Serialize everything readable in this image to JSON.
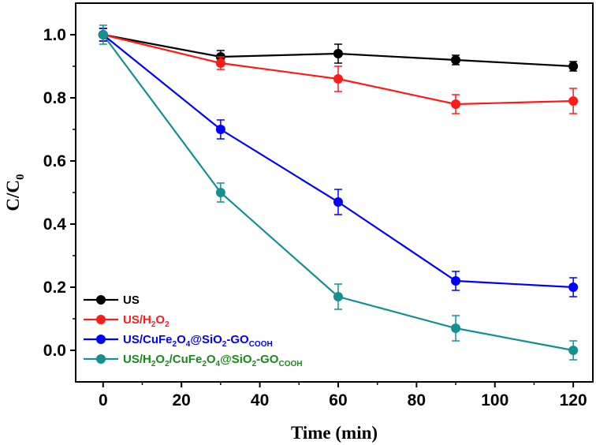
{
  "chart_data": {
    "type": "line",
    "title": "",
    "xlabel": "Time (min)",
    "ylabel_main": "C/C",
    "ylabel_sub": "0",
    "xlim": [
      -7,
      125
    ],
    "ylim": [
      -0.1,
      1.1
    ],
    "x_ticks": [
      "0",
      "20",
      "40",
      "60",
      "80",
      "100",
      "120"
    ],
    "y_ticks": [
      "0.0",
      "0.2",
      "0.4",
      "0.6",
      "0.8",
      "1.0"
    ],
    "x": [
      0,
      30,
      60,
      90,
      120
    ],
    "legend_position": "bottom-left",
    "series": [
      {
        "name": "US",
        "label_parts": [
          [
            "US",
            ""
          ]
        ],
        "color": "#000000",
        "legend_color": "#000000",
        "values": [
          1.0,
          0.93,
          0.94,
          0.92,
          0.9
        ],
        "errors": [
          0.02,
          0.02,
          0.03,
          0.015,
          0.015
        ]
      },
      {
        "name": "US/H2O2",
        "label_parts": [
          [
            "US/H",
            ""
          ],
          [
            "2",
            "sub"
          ],
          [
            "O",
            ""
          ],
          [
            "2",
            "sub"
          ]
        ],
        "color": "#ff1a1a",
        "legend_color": "#ff1a1a",
        "values": [
          1.0,
          0.91,
          0.86,
          0.78,
          0.79
        ],
        "errors": [
          0.02,
          0.02,
          0.04,
          0.03,
          0.04
        ]
      },
      {
        "name": "US/CuFe2O4@SiO2-GOCOOH",
        "label_parts": [
          [
            "US/CuFe",
            ""
          ],
          [
            "2",
            "sub"
          ],
          [
            "O",
            ""
          ],
          [
            "4",
            "sub"
          ],
          [
            "@SiO",
            ""
          ],
          [
            "2",
            "sub"
          ],
          [
            "-GO",
            ""
          ],
          [
            "COOH",
            "sub"
          ]
        ],
        "color": "#0000ff",
        "legend_color": "#0000ff",
        "values": [
          1.0,
          0.7,
          0.47,
          0.22,
          0.2
        ],
        "errors": [
          0.02,
          0.03,
          0.04,
          0.03,
          0.03
        ]
      },
      {
        "name": "US/H2O2/CuFe2O4@SiO2-GOCOOH",
        "label_parts": [
          [
            "US/H",
            ""
          ],
          [
            "2",
            "sub"
          ],
          [
            "O",
            ""
          ],
          [
            "2",
            "sub"
          ],
          [
            "/CuFe",
            ""
          ],
          [
            "2",
            "sub"
          ],
          [
            "O",
            ""
          ],
          [
            "4",
            "sub"
          ],
          [
            "@SiO",
            ""
          ],
          [
            "2",
            "sub"
          ],
          [
            "-GO",
            ""
          ],
          [
            "COOH",
            "sub"
          ]
        ],
        "color": "#149090",
        "legend_color": "#178a17",
        "values": [
          1.0,
          0.5,
          0.17,
          0.07,
          0.0
        ],
        "errors": [
          0.03,
          0.03,
          0.04,
          0.04,
          0.03
        ]
      }
    ]
  }
}
